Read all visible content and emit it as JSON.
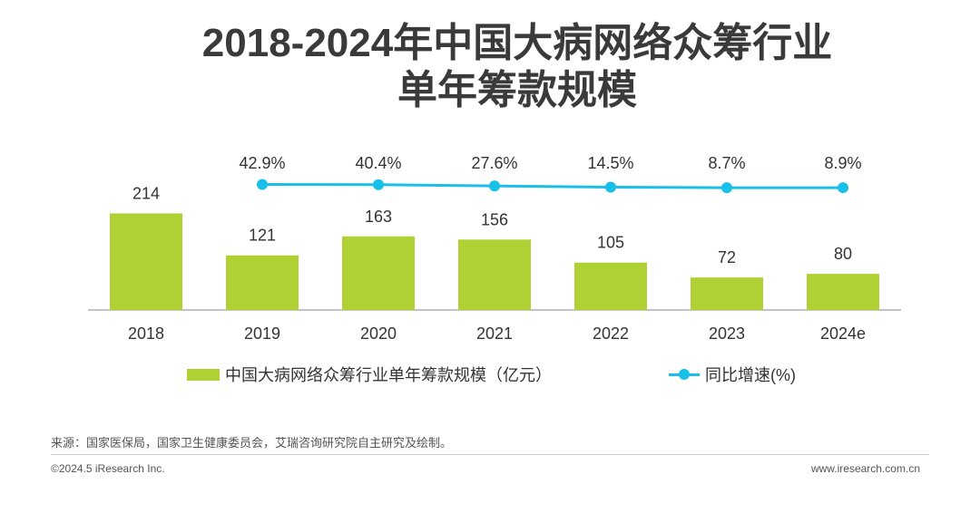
{
  "title": {
    "line1": "2018-2024年中国大病网络众筹行业",
    "line2": "单年筹款规模"
  },
  "chart_data": {
    "type": "bar",
    "categories": [
      "2018",
      "2019",
      "2020",
      "2021",
      "2022",
      "2023",
      "2024e"
    ],
    "series": [
      {
        "name": "中国大病网络众筹行业单年筹款规模（亿元）",
        "type": "bar",
        "values": [
          214,
          121,
          163,
          156,
          105,
          72,
          80
        ],
        "labels": [
          "214",
          "121",
          "163",
          "156",
          "105",
          "72",
          "80"
        ],
        "color": "#afd133"
      },
      {
        "name": "同比增速(%)",
        "type": "line",
        "values": [
          null,
          42.9,
          40.4,
          27.6,
          14.5,
          8.7,
          8.9
        ],
        "labels": [
          "",
          "42.9%",
          "40.4%",
          "27.6%",
          "14.5%",
          "8.7%",
          "8.9%"
        ],
        "color": "#18bfe8"
      }
    ],
    "legend_position": "bottom",
    "grid": false
  },
  "legend": {
    "bar_label": "中国大病网络众筹行业单年筹款规模（亿元）",
    "line_label": "同比增速(%)"
  },
  "footer": {
    "source": "来源：国家医保局，国家卫生健康委员会，艾瑞咨询研究院自主研究及绘制。",
    "copyright": "©2024.5 iResearch Inc.",
    "url": "www.iresearch.com.cn"
  }
}
